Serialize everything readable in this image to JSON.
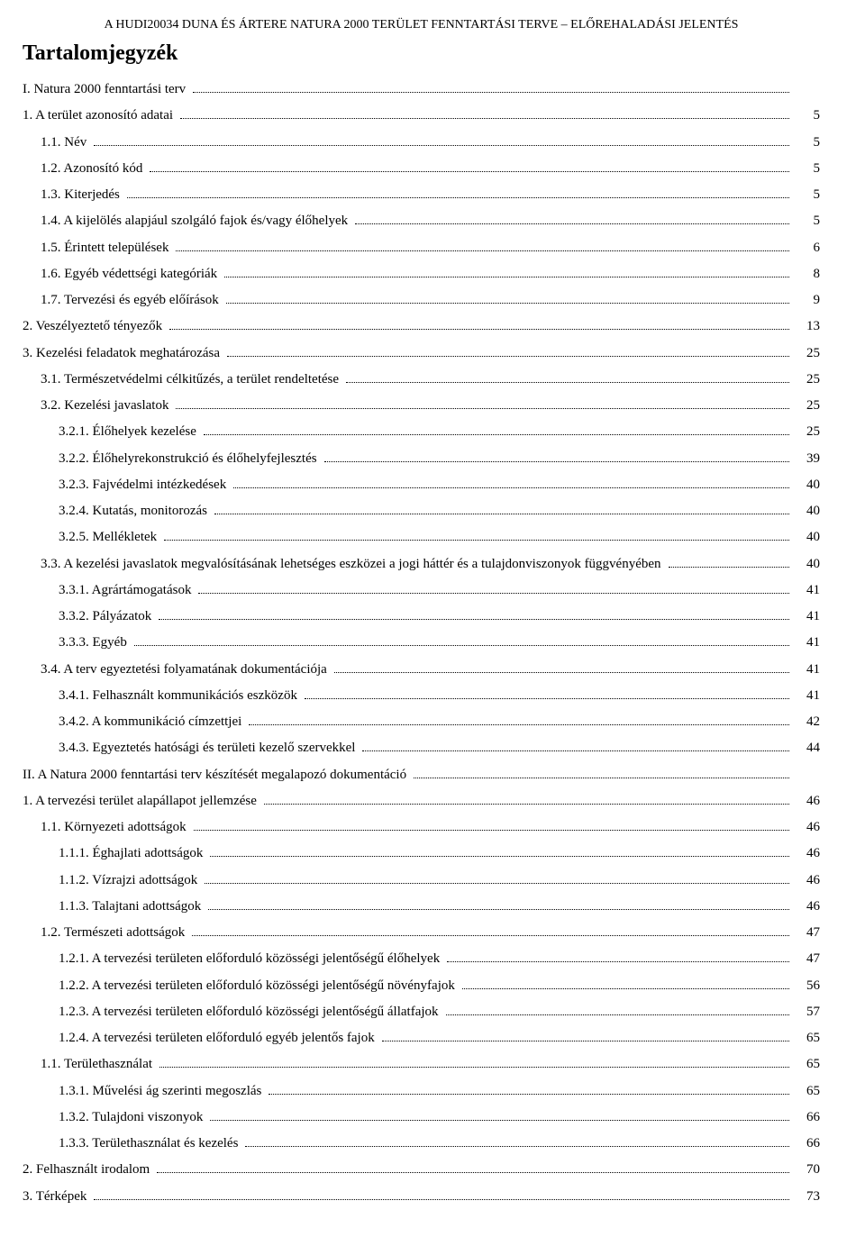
{
  "header": "A HUDI20034 DUNA ÉS ÁRTERE NATURA 2000 TERÜLET FENNTARTÁSI TERVE – ELŐREHALADÁSI JELENTÉS",
  "title": "Tartalomjegyzék",
  "entries": [
    {
      "indent": 0,
      "label": "I. Natura 2000 fenntartási terv",
      "page": ""
    },
    {
      "indent": 0,
      "label": "1.  A terület azonosító adatai",
      "page": "5"
    },
    {
      "indent": 1,
      "label": "1.1. Név",
      "page": "5"
    },
    {
      "indent": 1,
      "label": "1.2. Azonosító kód",
      "page": "5"
    },
    {
      "indent": 1,
      "label": "1.3. Kiterjedés",
      "page": "5"
    },
    {
      "indent": 1,
      "label": "1.4. A kijelölés alapjául szolgáló fajok és/vagy élőhelyek",
      "page": "5"
    },
    {
      "indent": 1,
      "label": "1.5. Érintett települések",
      "page": "6"
    },
    {
      "indent": 1,
      "label": "1.6. Egyéb védettségi kategóriák",
      "page": "8"
    },
    {
      "indent": 1,
      "label": "1.7. Tervezési és egyéb előírások",
      "page": "9"
    },
    {
      "indent": 0,
      "label": "2.  Veszélyeztető tényezők",
      "page": "13"
    },
    {
      "indent": 0,
      "label": "3.  Kezelési feladatok meghatározása",
      "page": "25"
    },
    {
      "indent": 1,
      "label": "3.1. Természetvédelmi célkitűzés, a terület rendeltetése",
      "page": "25"
    },
    {
      "indent": 1,
      "label": "3.2. Kezelési javaslatok",
      "page": "25"
    },
    {
      "indent": 2,
      "label": "3.2.1. Élőhelyek kezelése",
      "page": "25"
    },
    {
      "indent": 2,
      "label": "3.2.2. Élőhelyrekonstrukció és élőhelyfejlesztés",
      "page": "39"
    },
    {
      "indent": 2,
      "label": "3.2.3. Fajvédelmi intézkedések",
      "page": "40"
    },
    {
      "indent": 2,
      "label": "3.2.4. Kutatás, monitorozás",
      "page": "40"
    },
    {
      "indent": 2,
      "label": "3.2.5. Mellékletek",
      "page": "40"
    },
    {
      "indent": 1,
      "label": "3.3. A kezelési javaslatok megvalósításának lehetséges eszközei a jogi háttér és a tulajdonviszonyok függvényében",
      "page": "40"
    },
    {
      "indent": 2,
      "label": "3.3.1. Agrártámogatások",
      "page": "41"
    },
    {
      "indent": 2,
      "label": "3.3.2. Pályázatok",
      "page": "41"
    },
    {
      "indent": 2,
      "label": "3.3.3. Egyéb",
      "page": "41"
    },
    {
      "indent": 1,
      "label": "3.4.  A terv egyeztetési folyamatának dokumentációja",
      "page": "41"
    },
    {
      "indent": 2,
      "label": "3.4.1. Felhasznált kommunikációs eszközök",
      "page": "41"
    },
    {
      "indent": 2,
      "label": "3.4.2. A kommunikáció címzettjei",
      "page": "42"
    },
    {
      "indent": 2,
      "label": "3.4.3. Egyeztetés hatósági és területi kezelő szervekkel",
      "page": "44"
    },
    {
      "indent": 0,
      "label": "II.  A Natura 2000 fenntartási terv készítését megalapozó dokumentáció",
      "page": ""
    },
    {
      "indent": 0,
      "label": "1.  A tervezési terület alapállapot jellemzése",
      "page": "46"
    },
    {
      "indent": 1,
      "label": "1.1.  Környezeti adottságok",
      "page": "46"
    },
    {
      "indent": 2,
      "label": "1.1.1. Éghajlati adottságok",
      "page": "46"
    },
    {
      "indent": 2,
      "label": "1.1.2. Vízrajzi adottságok",
      "page": "46"
    },
    {
      "indent": 2,
      "label": "1.1.3. Talajtani adottságok",
      "page": "46"
    },
    {
      "indent": 1,
      "label": "1.2.  Természeti adottságok",
      "page": "47"
    },
    {
      "indent": 2,
      "label": "1.2.1. A tervezési területen előforduló közösségi jelentőségű élőhelyek",
      "page": "47"
    },
    {
      "indent": 2,
      "label": "1.2.2. A tervezési területen előforduló közösségi jelentőségű növényfajok",
      "page": "56"
    },
    {
      "indent": 2,
      "label": "1.2.3. A tervezési területen előforduló közösségi jelentőségű állatfajok",
      "page": "57"
    },
    {
      "indent": 2,
      "label": "1.2.4. A tervezési területen előforduló egyéb jelentős fajok",
      "page": "65"
    },
    {
      "indent": 1,
      "label": "1.1.  Területhasználat",
      "page": "65"
    },
    {
      "indent": 2,
      "label": "1.3.1. Művelési ág szerinti megoszlás",
      "page": "65"
    },
    {
      "indent": 2,
      "label": "1.3.2. Tulajdoni viszonyok",
      "page": "66"
    },
    {
      "indent": 2,
      "label": "1.3.3. Területhasználat és kezelés",
      "page": "66"
    },
    {
      "indent": 0,
      "label": "2.  Felhasznált irodalom",
      "page": "70"
    },
    {
      "indent": 0,
      "label": "3.  Térképek",
      "page": "73"
    }
  ]
}
